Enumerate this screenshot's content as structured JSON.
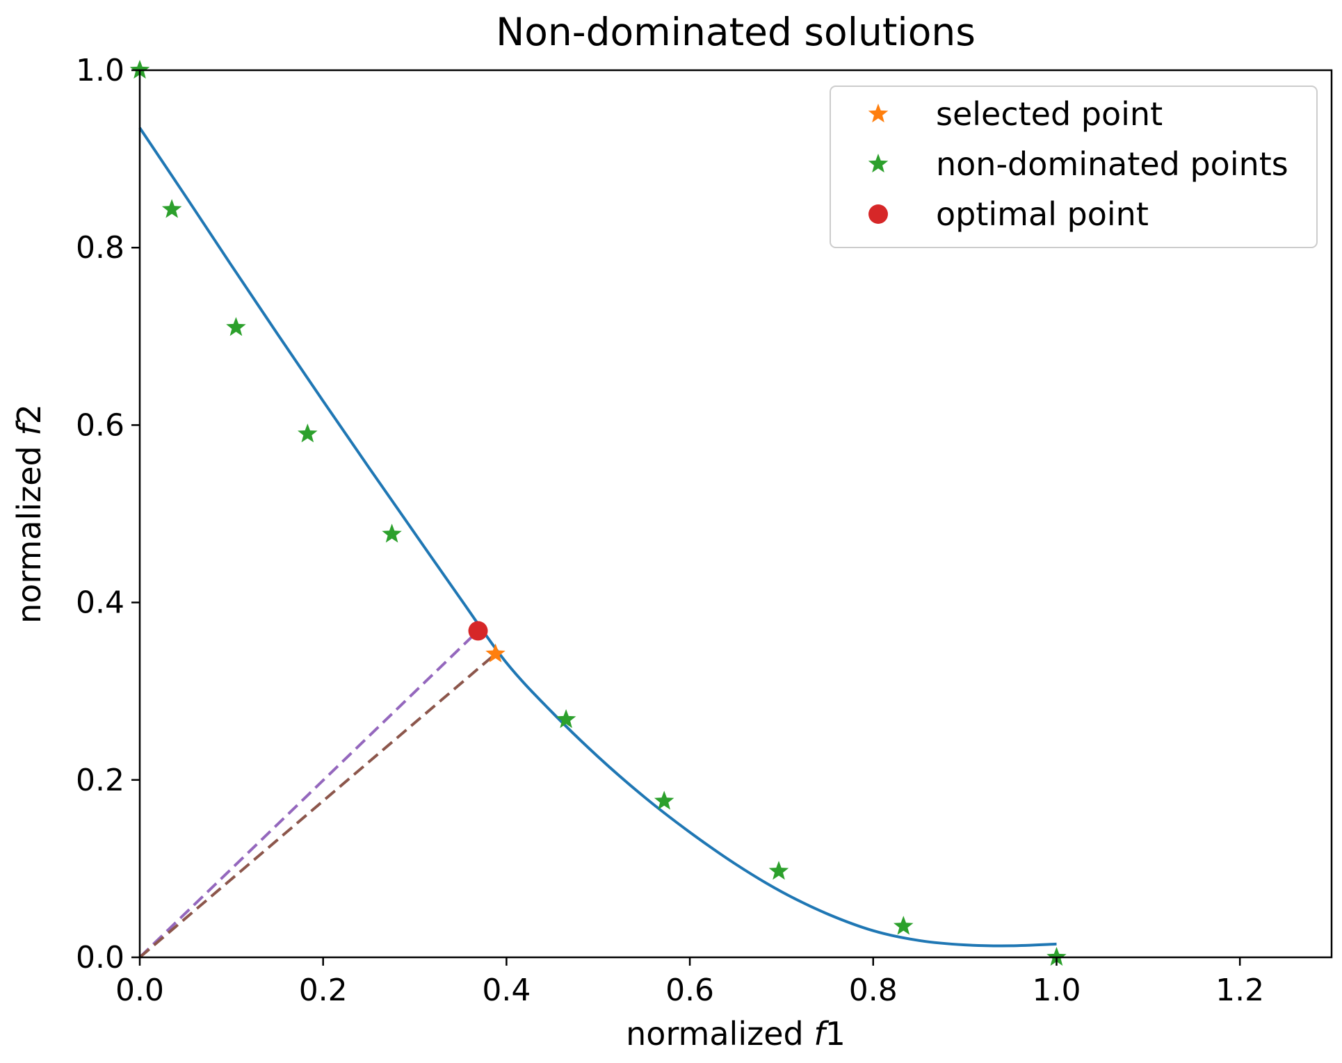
{
  "chart_data": {
    "type": "scatter",
    "title": "Non-dominated solutions",
    "xlabel": "normalized f1",
    "ylabel": "normalized f2",
    "xlim": [
      0,
      1.3
    ],
    "ylim": [
      0,
      1.0
    ],
    "xticks": [
      "0.0",
      "0.2",
      "0.4",
      "0.6",
      "0.8",
      "1.0",
      "1.2"
    ],
    "yticks": [
      "0.0",
      "0.2",
      "0.4",
      "0.6",
      "0.8",
      "1.0"
    ],
    "legend_position": "top-right",
    "grid": false,
    "legend": [
      {
        "label": "selected point",
        "marker": "star",
        "color": "#ff7f0e"
      },
      {
        "label": "non-dominated points",
        "marker": "star",
        "color": "#2ca02c"
      },
      {
        "label": "optimal point",
        "marker": "circle",
        "color": "#d62728"
      }
    ],
    "curve": {
      "color": "#1f77b4",
      "x": [
        0.0,
        0.05,
        0.1,
        0.15,
        0.2,
        0.25,
        0.3,
        0.35,
        0.4,
        0.45,
        0.5,
        0.55,
        0.6,
        0.65,
        0.7,
        0.75,
        0.8,
        0.85,
        0.9,
        0.95,
        1.0
      ],
      "y": [
        0.935,
        0.858,
        0.78,
        0.703,
        0.627,
        0.552,
        0.478,
        0.404,
        0.332,
        0.276,
        0.226,
        0.181,
        0.141,
        0.105,
        0.074,
        0.049,
        0.03,
        0.019,
        0.014,
        0.013,
        0.015
      ]
    },
    "series": [
      {
        "name": "non-dominated points",
        "marker": "star",
        "color": "#2ca02c",
        "x": [
          0.0,
          0.035,
          0.105,
          0.183,
          0.275,
          0.465,
          0.572,
          0.697,
          0.833,
          1.0
        ],
        "y": [
          1.0,
          0.843,
          0.71,
          0.59,
          0.477,
          0.268,
          0.176,
          0.097,
          0.035,
          0.0
        ]
      },
      {
        "name": "selected point",
        "marker": "star",
        "color": "#ff7f0e",
        "x": [
          0.388
        ],
        "y": [
          0.342
        ]
      },
      {
        "name": "optimal point",
        "marker": "circle",
        "color": "#d62728",
        "x": [
          0.369
        ],
        "y": [
          0.368
        ]
      }
    ],
    "lines": [
      {
        "style": "dashed",
        "color": "#9467bd",
        "x": [
          0.0,
          0.369
        ],
        "y": [
          0.0,
          0.368
        ]
      },
      {
        "style": "dashed",
        "color": "#8c564b",
        "x": [
          0.0,
          0.388
        ],
        "y": [
          0.0,
          0.342
        ]
      }
    ]
  }
}
